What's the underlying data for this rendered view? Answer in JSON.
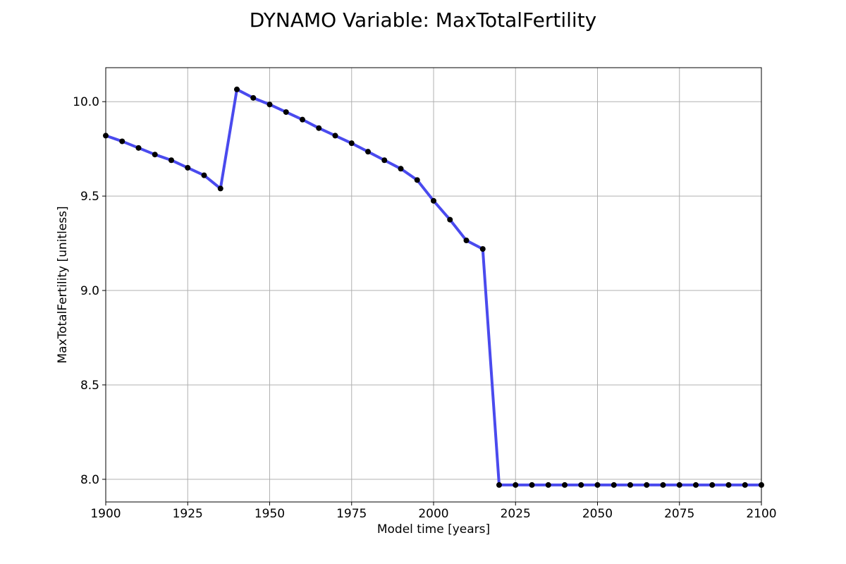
{
  "chart_data": {
    "type": "line",
    "title": "DYNAMO Variable: MaxTotalFertility",
    "xlabel": "Model time [years]",
    "ylabel": "MaxTotalFertility [unitless]",
    "xlim": [
      1900,
      2100
    ],
    "ylim": [
      7.88,
      10.18
    ],
    "xticks": [
      1900,
      1925,
      1950,
      1975,
      2000,
      2025,
      2050,
      2075,
      2100
    ],
    "yticks": [
      8.0,
      8.5,
      9.0,
      9.5,
      10.0
    ],
    "ytick_labels": [
      "8.0",
      "8.5",
      "9.0",
      "9.5",
      "10.0"
    ],
    "grid": true,
    "series": [
      {
        "line_color": "#4a4aee",
        "marker_color": "#000000",
        "x": [
          1900,
          1905,
          1910,
          1915,
          1920,
          1925,
          1930,
          1935,
          1940,
          1945,
          1950,
          1955,
          1960,
          1965,
          1970,
          1975,
          1980,
          1985,
          1990,
          1995,
          2000,
          2005,
          2010,
          2015,
          2020,
          2025,
          2030,
          2035,
          2040,
          2045,
          2050,
          2055,
          2060,
          2065,
          2070,
          2075,
          2080,
          2085,
          2090,
          2095,
          2100
        ],
        "values": [
          9.82,
          9.79,
          9.755,
          9.72,
          9.69,
          9.65,
          9.61,
          9.54,
          10.065,
          10.02,
          9.985,
          9.945,
          9.905,
          9.86,
          9.82,
          9.78,
          9.735,
          9.69,
          9.645,
          9.585,
          9.475,
          9.375,
          9.265,
          9.22,
          7.97,
          7.97,
          7.97,
          7.97,
          7.97,
          7.97,
          7.97,
          7.97,
          7.97,
          7.97,
          7.97,
          7.97,
          7.97,
          7.97,
          7.97,
          7.97,
          7.97
        ]
      }
    ]
  }
}
